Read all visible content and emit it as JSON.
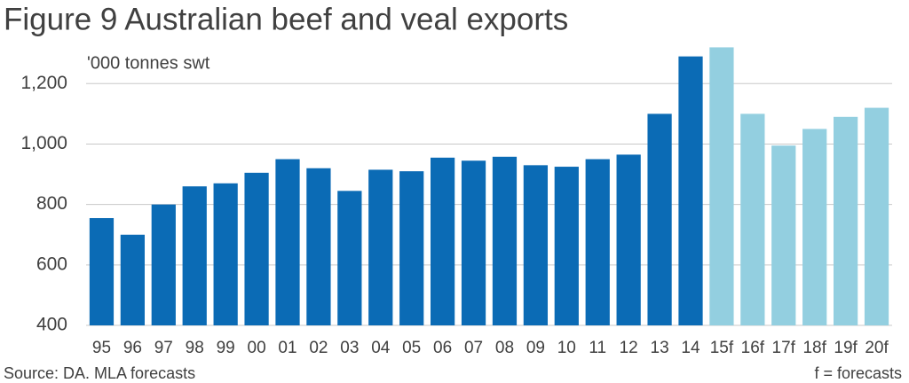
{
  "chart_data": {
    "type": "bar",
    "title": "Figure 9 Australian beef and veal exports",
    "y_label": "'000 tonnes swt",
    "source": "Source: DA. MLA forecasts",
    "note": "f = forecasts",
    "categories": [
      "95",
      "96",
      "97",
      "98",
      "99",
      "00",
      "01",
      "02",
      "03",
      "04",
      "05",
      "06",
      "07",
      "08",
      "09",
      "10",
      "11",
      "12",
      "13",
      "14",
      "15f",
      "16f",
      "17f",
      "18f",
      "19f",
      "20f"
    ],
    "values": [
      755,
      700,
      800,
      860,
      870,
      905,
      950,
      920,
      845,
      915,
      910,
      955,
      945,
      958,
      930,
      925,
      950,
      965,
      1100,
      1290,
      1320,
      1100,
      995,
      1050,
      1090,
      1120
    ],
    "colors": [
      "#0b6bb5",
      "#0b6bb5",
      "#0b6bb5",
      "#0b6bb5",
      "#0b6bb5",
      "#0b6bb5",
      "#0b6bb5",
      "#0b6bb5",
      "#0b6bb5",
      "#0b6bb5",
      "#0b6bb5",
      "#0b6bb5",
      "#0b6bb5",
      "#0b6bb5",
      "#0b6bb5",
      "#0b6bb5",
      "#0b6bb5",
      "#0b6bb5",
      "#0b6bb5",
      "#0b6bb5",
      "#93cfe0",
      "#93cfe0",
      "#93cfe0",
      "#93cfe0",
      "#93cfe0",
      "#93cfe0"
    ],
    "ylim": [
      400,
      1330
    ],
    "yticks": [
      400,
      600,
      800,
      {
        "value": 1000,
        "label": "1,000"
      },
      {
        "value": 1200,
        "label": "1,200"
      }
    ],
    "grid": true
  }
}
